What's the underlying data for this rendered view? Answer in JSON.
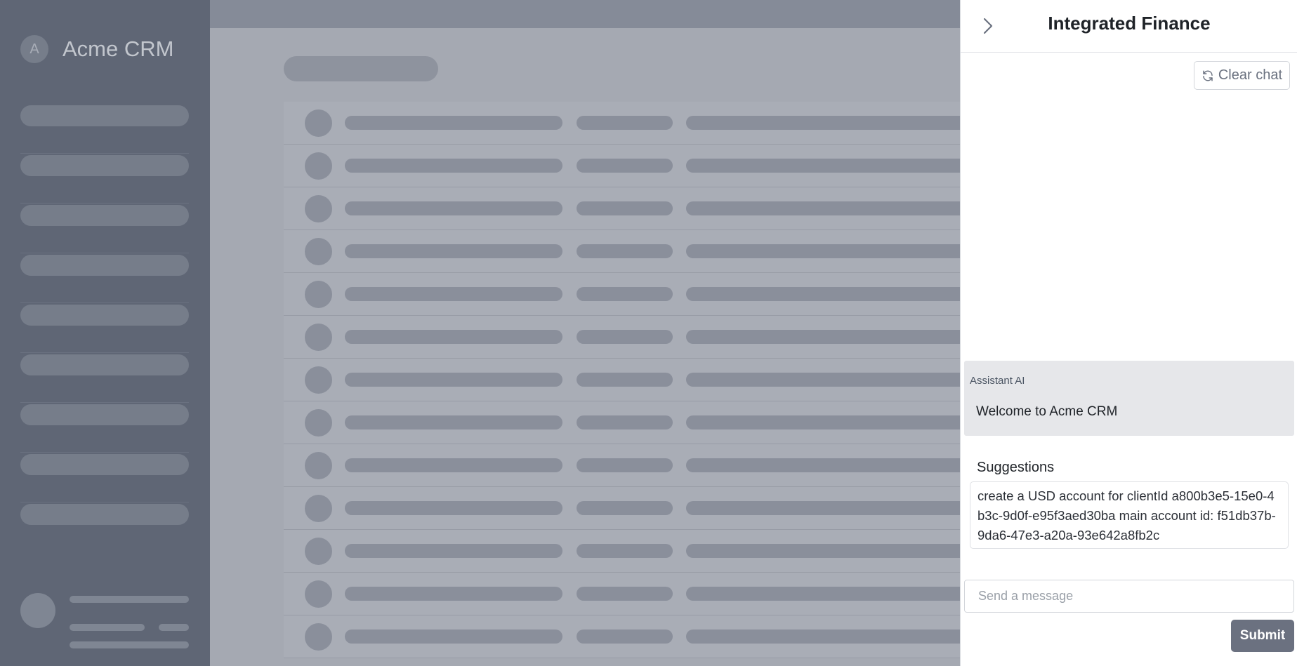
{
  "app": {
    "brand_initial": "A",
    "brand_name": "Acme CRM"
  },
  "drawer": {
    "title": "Integrated Finance",
    "collapse_icon": "chevron-right-icon",
    "clear_chat_label": "Clear chat",
    "clear_chat_icon": "refresh-icon",
    "messages": [
      {
        "author": "Assistant AI",
        "text": "Welcome to Acme CRM"
      }
    ],
    "suggestions_title": "Suggestions",
    "suggestions": [
      "create a USD account for clientId a800b3e5-15e0-4b3c-9d0f-e95f3aed30ba main account id: f51db37b-9da6-47e3-a20a-93e642a8fb2c"
    ],
    "input": {
      "placeholder": "Send a message",
      "value": ""
    },
    "submit_label": "Submit"
  },
  "colors": {
    "overlay_dim": "#5f6675",
    "submit_button": "#6b7180",
    "message_bubble": "#e6e7ea"
  }
}
